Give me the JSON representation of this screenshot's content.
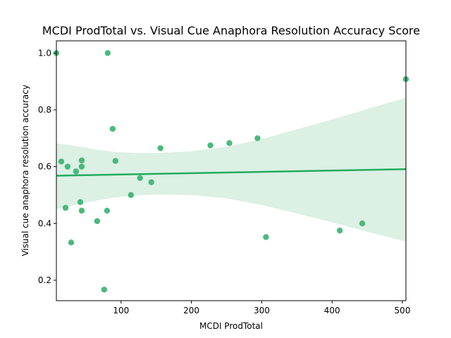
{
  "chart_data": {
    "type": "scatter",
    "title": "MCDI ProdTotal vs. Visual Cue Anaphora Resolution Accuracy Score",
    "xlabel": "MCDI ProdTotal",
    "ylabel": "Visual cue anaphora resolution accuracy",
    "xlim": [
      8,
      505
    ],
    "ylim": [
      0.128,
      1.043
    ],
    "x_ticks": [
      100,
      200,
      300,
      400,
      500
    ],
    "y_ticks": [
      0.2,
      0.4,
      0.6,
      0.8,
      1.0
    ],
    "y_tick_labels": [
      "0.2",
      "0.4",
      "0.6",
      "0.8",
      "1.0"
    ],
    "grid": false,
    "legend": "none",
    "colors": {
      "points": "#3cb371",
      "line": "#22ac5f",
      "band": "#dcf0e4"
    },
    "points": [
      {
        "x": 8,
        "y": 1.0
      },
      {
        "x": 81,
        "y": 1.0
      },
      {
        "x": 505,
        "y": 0.908
      },
      {
        "x": 88,
        "y": 0.733
      },
      {
        "x": 294,
        "y": 0.7
      },
      {
        "x": 254,
        "y": 0.683
      },
      {
        "x": 227,
        "y": 0.675
      },
      {
        "x": 156,
        "y": 0.665
      },
      {
        "x": 44,
        "y": 0.622
      },
      {
        "x": 15,
        "y": 0.618
      },
      {
        "x": 92,
        "y": 0.62
      },
      {
        "x": 24,
        "y": 0.6
      },
      {
        "x": 44,
        "y": 0.6
      },
      {
        "x": 36,
        "y": 0.583
      },
      {
        "x": 127,
        "y": 0.56
      },
      {
        "x": 143,
        "y": 0.545
      },
      {
        "x": 114,
        "y": 0.5
      },
      {
        "x": 42,
        "y": 0.475
      },
      {
        "x": 21,
        "y": 0.455
      },
      {
        "x": 44,
        "y": 0.445
      },
      {
        "x": 80,
        "y": 0.445
      },
      {
        "x": 66,
        "y": 0.408
      },
      {
        "x": 443,
        "y": 0.4
      },
      {
        "x": 411,
        "y": 0.375
      },
      {
        "x": 306,
        "y": 0.352
      },
      {
        "x": 29,
        "y": 0.333
      },
      {
        "x": 76,
        "y": 0.167
      }
    ],
    "regression_line": {
      "x": [
        8,
        505
      ],
      "y": [
        0.568,
        0.591
      ]
    },
    "confidence_band": {
      "x": [
        8,
        30,
        60,
        90,
        120,
        150,
        200,
        250,
        300,
        350,
        400,
        450,
        505
      ],
      "upper": [
        0.682,
        0.675,
        0.662,
        0.652,
        0.648,
        0.648,
        0.654,
        0.67,
        0.697,
        0.731,
        0.766,
        0.803,
        0.843
      ],
      "lower": [
        0.451,
        0.463,
        0.478,
        0.491,
        0.498,
        0.502,
        0.5,
        0.488,
        0.465,
        0.435,
        0.404,
        0.371,
        0.336
      ]
    }
  }
}
